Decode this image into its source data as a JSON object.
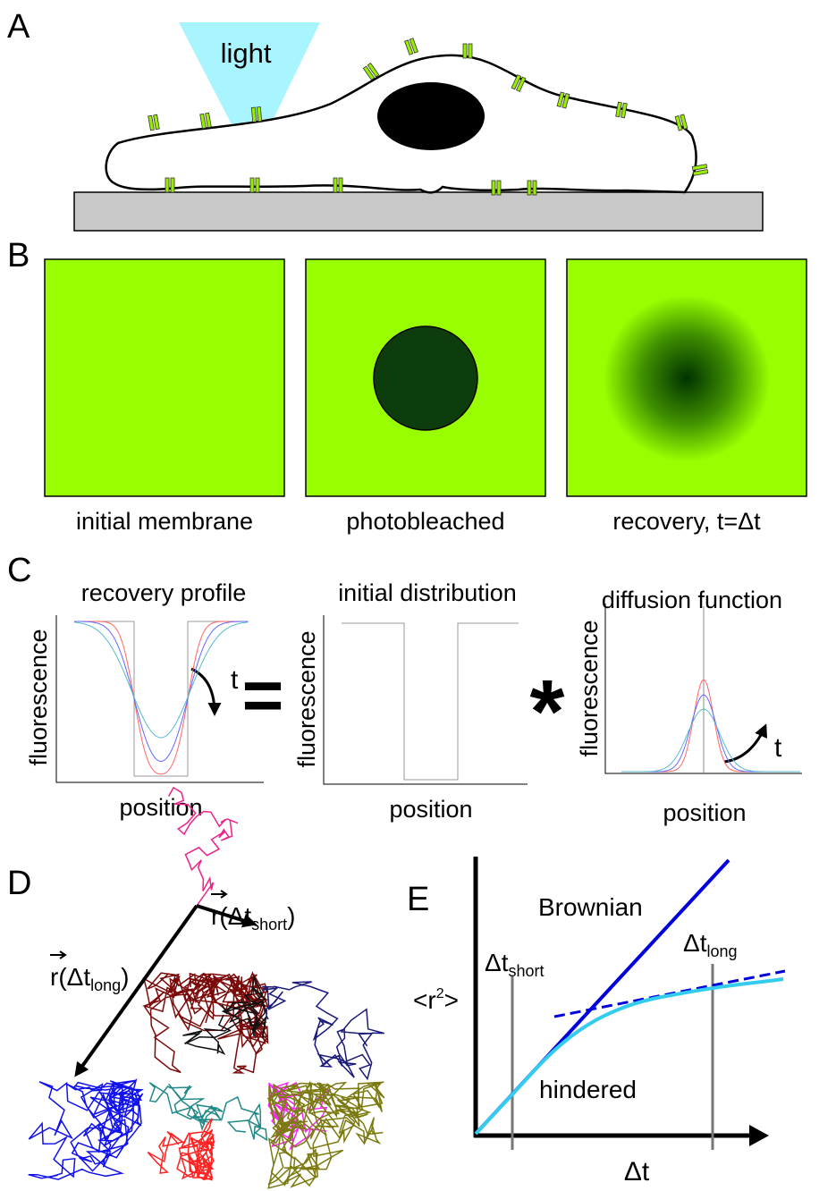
{
  "panel_a": {
    "label": "A",
    "light": "light"
  },
  "panel_b": {
    "label": "B",
    "captions": [
      "initial membrane",
      "photobleached",
      "recovery, t=Δt"
    ]
  },
  "panel_c": {
    "label": "C",
    "equals": "=",
    "convolve": "*",
    "plots": [
      {
        "title": "recovery profile",
        "y_label": "fluorescence",
        "x_label": "position",
        "time": "t"
      },
      {
        "title": "initial distribution",
        "y_label": "fluorescence",
        "x_label": "position"
      },
      {
        "title": "diffusion function",
        "y_label": "fluorescence",
        "x_label": "position",
        "time": "t"
      }
    ]
  },
  "panel_d": {
    "label": "D",
    "vectors": [
      {
        "base": "r(Δt",
        "sub": "short",
        "close": ")"
      },
      {
        "base": "r(Δt",
        "sub": "long",
        "close": ")"
      }
    ]
  },
  "panel_e": {
    "label": "E",
    "brownian": "Brownian",
    "hindered": "hindered",
    "dt_short": {
      "base": "Δt",
      "sub": "short"
    },
    "dt_long": {
      "base": "Δt",
      "sub": "long"
    },
    "y_label": {
      "base": "<r",
      "sup": "2",
      "close": ">"
    },
    "x_label": "Δt"
  }
}
